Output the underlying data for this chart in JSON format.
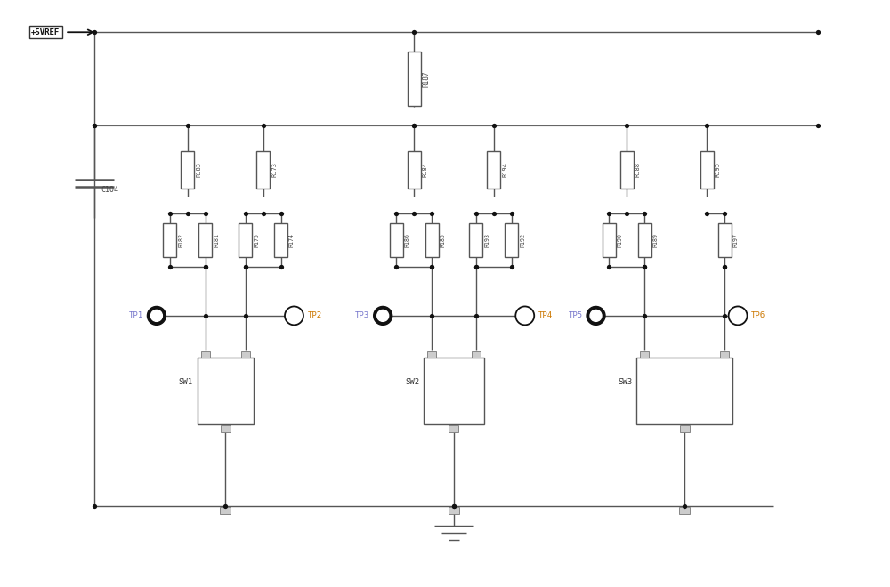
{
  "bg_color": "#ffffff",
  "line_color": "#555555",
  "line_width": 1.0,
  "dot_color": "#111111",
  "vref_label": "+5VREF",
  "c104_label": "C104",
  "r187_label": "R187",
  "tp_odd_color": "#7777cc",
  "tp_even_color": "#cc7700",
  "groups": [
    {
      "top": "R183",
      "left": "R182",
      "right": "R181"
    },
    {
      "top": "R173",
      "left": "R175",
      "right": "R174"
    },
    {
      "top": "R184",
      "left": "R186",
      "right": "R185"
    },
    {
      "top": "R194",
      "left": "R193",
      "right": "R192"
    },
    {
      "top": "R188",
      "left": "R190",
      "right": "R189"
    },
    {
      "top": "R195",
      "left": "",
      "right": "R197"
    }
  ],
  "sw_labels": [
    "SW1",
    "SW2",
    "SW3"
  ],
  "tp_labels": [
    "TP1",
    "TP2",
    "TP3",
    "TP4",
    "TP5",
    "TP6"
  ]
}
